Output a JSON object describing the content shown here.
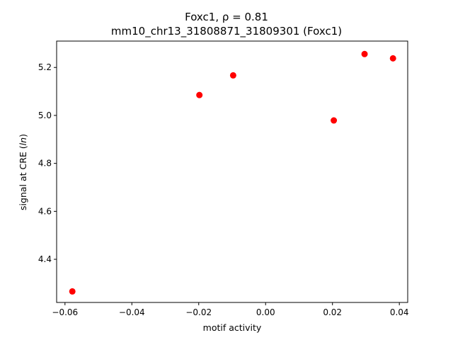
{
  "chart_data": {
    "type": "scatter",
    "title_line1": "Foxc1, ρ = 0.81",
    "title_line2": "mm10_chr13_31808871_31809301 (Foxc1)",
    "xlabel": "motif activity",
    "ylabel_prefix": "signal at CRE (",
    "ylabel_italic": "ln",
    "ylabel_suffix": ")",
    "xlim": [
      -0.0625,
      0.0425
    ],
    "ylim": [
      4.22,
      5.31
    ],
    "x_ticks": [
      {
        "value": -0.06,
        "label": "−0.06"
      },
      {
        "value": -0.04,
        "label": "−0.04"
      },
      {
        "value": -0.02,
        "label": "−0.02"
      },
      {
        "value": 0.0,
        "label": "0.00"
      },
      {
        "value": 0.02,
        "label": "0.02"
      },
      {
        "value": 0.04,
        "label": "0.04"
      }
    ],
    "y_ticks": [
      {
        "value": 4.4,
        "label": "4.4"
      },
      {
        "value": 4.6,
        "label": "4.6"
      },
      {
        "value": 4.8,
        "label": "4.8"
      },
      {
        "value": 5.0,
        "label": "5.0"
      },
      {
        "value": 5.2,
        "label": "5.2"
      }
    ],
    "points": [
      {
        "x": -0.0578,
        "y": 4.266
      },
      {
        "x": -0.0198,
        "y": 5.085
      },
      {
        "x": -0.0097,
        "y": 5.167
      },
      {
        "x": 0.0204,
        "y": 4.979
      },
      {
        "x": 0.0296,
        "y": 5.256
      },
      {
        "x": 0.0381,
        "y": 5.238
      }
    ],
    "marker_color": "#ff0000",
    "grid": false,
    "legend": "none"
  }
}
